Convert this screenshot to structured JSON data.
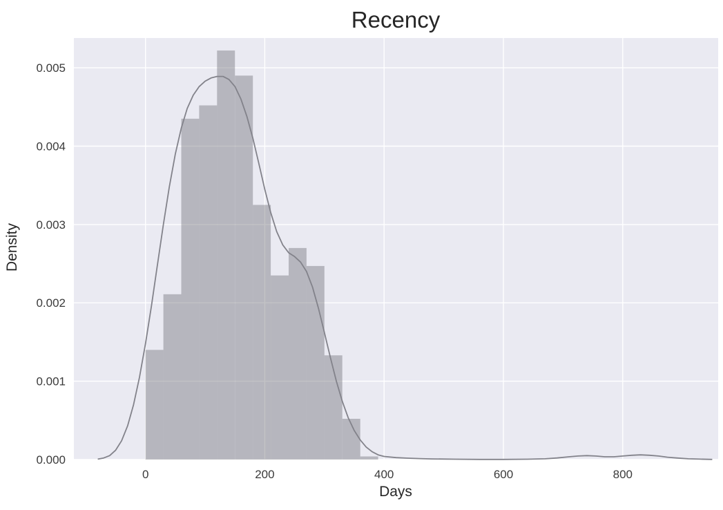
{
  "chart_data": {
    "type": "bar",
    "subtype": "histogram_with_kde",
    "title": "Recency",
    "xlabel": "Days",
    "ylabel": "Density",
    "xlim": [
      -120,
      960
    ],
    "ylim": [
      0,
      0.00538
    ],
    "grid": true,
    "legend": false,
    "style": "seaborn-darkgrid",
    "colors": {
      "figure_bg": "#ffffff",
      "plot_bg": "#eaeaf2",
      "grid": "#ffffff",
      "bar_fill": "#77777e",
      "bar_opacity": 0.45,
      "kde_line": "#82828a",
      "text": "#262626"
    },
    "xticks": [
      {
        "v": 0,
        "label": "0"
      },
      {
        "v": 200,
        "label": "200"
      },
      {
        "v": 400,
        "label": "400"
      },
      {
        "v": 600,
        "label": "600"
      },
      {
        "v": 800,
        "label": "800"
      }
    ],
    "yticks": [
      {
        "v": 0.0,
        "label": "0.000"
      },
      {
        "v": 0.001,
        "label": "0.001"
      },
      {
        "v": 0.002,
        "label": "0.002"
      },
      {
        "v": 0.003,
        "label": "0.003"
      },
      {
        "v": 0.004,
        "label": "0.004"
      },
      {
        "v": 0.005,
        "label": "0.005"
      }
    ],
    "histogram": {
      "bin_width": 30,
      "bins": [
        {
          "x0": 0,
          "x1": 30,
          "density": 0.0014
        },
        {
          "x0": 30,
          "x1": 60,
          "density": 0.00211
        },
        {
          "x0": 60,
          "x1": 90,
          "density": 0.00435
        },
        {
          "x0": 90,
          "x1": 120,
          "density": 0.00452
        },
        {
          "x0": 120,
          "x1": 150,
          "density": 0.00522
        },
        {
          "x0": 150,
          "x1": 180,
          "density": 0.0049
        },
        {
          "x0": 180,
          "x1": 210,
          "density": 0.00325
        },
        {
          "x0": 210,
          "x1": 240,
          "density": 0.00235
        },
        {
          "x0": 240,
          "x1": 270,
          "density": 0.0027
        },
        {
          "x0": 270,
          "x1": 300,
          "density": 0.00247
        },
        {
          "x0": 300,
          "x1": 330,
          "density": 0.00133
        },
        {
          "x0": 330,
          "x1": 360,
          "density": 0.00052
        },
        {
          "x0": 360,
          "x1": 390,
          "density": 4e-05
        }
      ]
    },
    "kde": {
      "points": [
        [
          -80,
          5e-06
        ],
        [
          -70,
          2e-05
        ],
        [
          -60,
          5e-05
        ],
        [
          -50,
          0.00012
        ],
        [
          -40,
          0.00024
        ],
        [
          -30,
          0.00043
        ],
        [
          -20,
          0.0007
        ],
        [
          -10,
          0.00105
        ],
        [
          0,
          0.00148
        ],
        [
          10,
          0.00196
        ],
        [
          20,
          0.00248
        ],
        [
          30,
          0.003
        ],
        [
          40,
          0.00348
        ],
        [
          50,
          0.0039
        ],
        [
          60,
          0.00423
        ],
        [
          70,
          0.00448
        ],
        [
          80,
          0.00465
        ],
        [
          90,
          0.00476
        ],
        [
          100,
          0.00483
        ],
        [
          110,
          0.00487
        ],
        [
          120,
          0.00489
        ],
        [
          130,
          0.00489
        ],
        [
          140,
          0.00485
        ],
        [
          150,
          0.00476
        ],
        [
          160,
          0.0046
        ],
        [
          170,
          0.00438
        ],
        [
          180,
          0.0041
        ],
        [
          190,
          0.00378
        ],
        [
          200,
          0.00345
        ],
        [
          210,
          0.00315
        ],
        [
          220,
          0.00291
        ],
        [
          230,
          0.00274
        ],
        [
          240,
          0.00264
        ],
        [
          250,
          0.00259
        ],
        [
          260,
          0.00252
        ],
        [
          270,
          0.0024
        ],
        [
          280,
          0.0022
        ],
        [
          290,
          0.00193
        ],
        [
          300,
          0.00162
        ],
        [
          310,
          0.0013
        ],
        [
          320,
          0.001
        ],
        [
          330,
          0.00074
        ],
        [
          340,
          0.00053
        ],
        [
          350,
          0.00037
        ],
        [
          360,
          0.00025
        ],
        [
          370,
          0.00016
        ],
        [
          380,
          0.0001
        ],
        [
          390,
          6e-05
        ],
        [
          400,
          4e-05
        ],
        [
          420,
          2.5e-05
        ],
        [
          440,
          1.8e-05
        ],
        [
          460,
          1.2e-05
        ],
        [
          480,
          8e-06
        ],
        [
          520,
          4e-06
        ],
        [
          560,
          2e-06
        ],
        [
          600,
          2e-06
        ],
        [
          640,
          4e-06
        ],
        [
          670,
          1e-05
        ],
        [
          690,
          2e-05
        ],
        [
          710,
          3.5e-05
        ],
        [
          725,
          4.5e-05
        ],
        [
          740,
          5e-05
        ],
        [
          755,
          4.5e-05
        ],
        [
          770,
          3.5e-05
        ],
        [
          785,
          3.5e-05
        ],
        [
          800,
          4.5e-05
        ],
        [
          815,
          5.5e-05
        ],
        [
          830,
          6e-05
        ],
        [
          845,
          5.5e-05
        ],
        [
          860,
          4.5e-05
        ],
        [
          875,
          3e-05
        ],
        [
          890,
          2e-05
        ],
        [
          910,
          1e-05
        ],
        [
          930,
          5e-06
        ],
        [
          950,
          2e-06
        ]
      ]
    }
  }
}
